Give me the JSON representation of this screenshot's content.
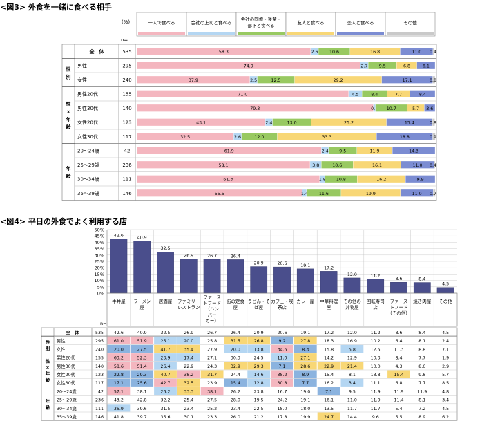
{
  "chart_data": [
    {
      "type": "bar",
      "stacked": "horizontal-100",
      "title": "<図3> 外食を一緒に食べる相手",
      "unit_label": "(%)",
      "n_label": "n=",
      "legend_position": "top",
      "legend": [
        "一人で食べる",
        "会社の上司と食べる",
        "会社の同僚・後輩・部下と食べる",
        "友人と食べる",
        "恋人と食べる",
        "その他"
      ],
      "legend_multiline": {
        "2": [
          "会社の同僚・後輩・",
          "部下と食べる"
        ]
      },
      "colors": [
        "#f4b6bf",
        "#b4d6f2",
        "#98c961",
        "#f8d776",
        "#7b8cd2",
        "#c9c9c9"
      ],
      "groups": [
        {
          "label": "",
          "rows": [
            0
          ]
        },
        {
          "label": "性別",
          "rows": [
            1,
            2
          ]
        },
        {
          "label": "性×年齢",
          "rows": [
            3,
            4,
            5,
            6
          ]
        },
        {
          "label": "年齢",
          "rows": [
            7,
            8,
            9,
            10
          ]
        }
      ],
      "rows": [
        {
          "label": "全　体",
          "n": "535",
          "values": [
            58.3,
            2.6,
            10.6,
            16.8,
            11.0,
            0.4
          ]
        },
        {
          "label": "男性",
          "n": "295",
          "values": [
            74.9,
            2.7,
            9.5,
            6.8,
            6.1,
            null
          ]
        },
        {
          "label": "女性",
          "n": "240",
          "values": [
            37.9,
            2.5,
            12.5,
            29.2,
            17.1,
            0.8
          ]
        },
        {
          "label": "男性20代",
          "n": "155",
          "values": [
            71.0,
            4.5,
            8.4,
            7.7,
            8.4,
            null
          ]
        },
        {
          "label": "男性30代",
          "n": "140",
          "values": [
            79.3,
            0.7,
            10.7,
            5.7,
            3.6,
            null
          ]
        },
        {
          "label": "女性20代",
          "n": "123",
          "values": [
            43.1,
            2.4,
            13.0,
            25.2,
            15.4,
            0.8
          ]
        },
        {
          "label": "女性30代",
          "n": "117",
          "values": [
            32.5,
            2.6,
            12.0,
            33.3,
            18.8,
            0.9
          ]
        },
        {
          "label": "20～24歳",
          "n": "42",
          "values": [
            61.9,
            2.4,
            9.5,
            11.9,
            14.3,
            null
          ]
        },
        {
          "label": "25～29歳",
          "n": "236",
          "values": [
            58.1,
            3.8,
            10.6,
            16.1,
            11.0,
            0.4
          ]
        },
        {
          "label": "30～34歳",
          "n": "111",
          "values": [
            61.3,
            1.8,
            10.8,
            16.2,
            9.9,
            null
          ]
        },
        {
          "label": "35～39歳",
          "n": "146",
          "values": [
            55.5,
            1.4,
            11.6,
            19.9,
            11.0,
            0.7
          ]
        }
      ]
    },
    {
      "type": "bar",
      "title": "<図4> 平日の外食でよく利用する店",
      "ylim": [
        0,
        50
      ],
      "yticks": [
        "0%",
        "5%",
        "10%",
        "15%",
        "20%",
        "25%",
        "30%",
        "35%",
        "40%",
        "45%",
        "50%"
      ],
      "n_label": "n=",
      "color": "#4a4e8c",
      "categories": [
        "牛丼屋",
        "ラーメン屋",
        "居酒屋",
        "ファミリーレストラン",
        "ファーストフード（ハンバーガー）",
        "街の定食屋",
        "うどん・そば屋",
        "カフェ・喫茶店",
        "カレー屋",
        "中華料理屋",
        "その他の丼物屋",
        "回転寿司店",
        "ファーストフード（その他）",
        "焼き肉屋",
        "その他"
      ],
      "category_lines": [
        [
          "牛丼屋"
        ],
        [
          "ラーメン",
          "屋"
        ],
        [
          "居酒屋"
        ],
        [
          "ファミリー",
          "レストラン"
        ],
        [
          "ファース",
          "トフード",
          "（ハン",
          "バー",
          "ガー）"
        ],
        [
          "街の定食",
          "屋"
        ],
        [
          "うどん・そ",
          "ば屋"
        ],
        [
          "カフェ・喫",
          "茶店"
        ],
        [
          "カレー屋"
        ],
        [
          "中華料理",
          "屋"
        ],
        [
          "その他の",
          "丼物屋"
        ],
        [
          "回転寿司",
          "店"
        ],
        [
          "ファース",
          "トフード",
          "（その他）"
        ],
        [
          "焼き肉屋"
        ],
        [
          "その他"
        ]
      ],
      "values": [
        42.6,
        40.9,
        32.5,
        26.9,
        26.7,
        26.4,
        20.9,
        20.6,
        19.1,
        17.2,
        12.0,
        11.2,
        8.6,
        8.4,
        4.5
      ],
      "table_groups": [
        {
          "label": "",
          "rows": [
            0
          ]
        },
        {
          "label": "性別",
          "rows": [
            1,
            2
          ]
        },
        {
          "label": "性×年齢",
          "rows": [
            3,
            4,
            5,
            6
          ]
        },
        {
          "label": "年齢",
          "rows": [
            7,
            8,
            9,
            10
          ]
        }
      ],
      "table_rows": [
        {
          "label": "全　体",
          "n": "535",
          "values": [
            "42.6",
            "40.9",
            "32.5",
            "26.9",
            "26.7",
            "26.4",
            "20.9",
            "20.6",
            "19.1",
            "17.2",
            "12.0",
            "11.2",
            "8.6",
            "8.4",
            "4.5"
          ]
        },
        {
          "label": "男性",
          "n": "295",
          "values": [
            "61.0",
            "51.9",
            "25.1",
            "20.0",
            "25.8",
            "31.5",
            "26.8",
            "9.2",
            "27.8",
            "18.3",
            "16.9",
            "10.2",
            "6.4",
            "8.1",
            "2.4"
          ]
        },
        {
          "label": "女性",
          "n": "240",
          "values": [
            "20.0",
            "27.5",
            "41.7",
            "35.4",
            "27.9",
            "20.0",
            "13.8",
            "34.6",
            "8.3",
            "15.8",
            "5.8",
            "12.5",
            "11.3",
            "8.8",
            "7.1"
          ]
        },
        {
          "label": "男性20代",
          "n": "155",
          "values": [
            "63.2",
            "52.3",
            "23.9",
            "17.4",
            "27.1",
            "30.3",
            "24.5",
            "11.0",
            "27.1",
            "14.2",
            "12.9",
            "10.3",
            "8.4",
            "7.7",
            "1.9"
          ]
        },
        {
          "label": "男性30代",
          "n": "140",
          "values": [
            "58.6",
            "51.4",
            "26.4",
            "22.9",
            "24.3",
            "32.9",
            "29.3",
            "7.1",
            "28.6",
            "22.9",
            "21.4",
            "10.0",
            "4.3",
            "8.6",
            "2.9"
          ]
        },
        {
          "label": "女性20代",
          "n": "123",
          "values": [
            "22.8",
            "29.3",
            "40.7",
            "38.2",
            "31.7",
            "24.4",
            "14.6",
            "38.2",
            "8.9",
            "15.4",
            "8.1",
            "13.8",
            "15.4",
            "9.8",
            "5.7"
          ]
        },
        {
          "label": "女性30代",
          "n": "117",
          "values": [
            "17.1",
            "25.6",
            "42.7",
            "32.5",
            "23.9",
            "15.4",
            "12.8",
            "30.8",
            "7.7",
            "16.2",
            "3.4",
            "11.1",
            "6.8",
            "7.7",
            "8.5"
          ]
        },
        {
          "label": "20～24歳",
          "n": "42",
          "values": [
            "57.1",
            "38.1",
            "26.2",
            "33.3",
            "38.1",
            "26.2",
            "23.8",
            "16.7",
            "19.0",
            "7.1",
            "9.5",
            "11.9",
            "11.9",
            "11.9",
            "4.8"
          ]
        },
        {
          "label": "25～29歳",
          "n": "236",
          "values": [
            "43.2",
            "42.8",
            "32.2",
            "25.4",
            "27.5",
            "28.0",
            "19.5",
            "24.2",
            "19.1",
            "16.1",
            "11.0",
            "11.9",
            "11.4",
            "8.1",
            "3.4"
          ]
        },
        {
          "label": "30～34歳",
          "n": "111",
          "values": [
            "36.9",
            "39.6",
            "31.5",
            "23.4",
            "25.2",
            "23.4",
            "22.5",
            "18.0",
            "18.0",
            "13.5",
            "11.7",
            "11.7",
            "5.4",
            "7.2",
            "4.5"
          ]
        },
        {
          "label": "35～39歳",
          "n": "146",
          "values": [
            "41.8",
            "39.7",
            "35.6",
            "30.1",
            "23.3",
            "26.0",
            "21.2",
            "17.8",
            "19.9",
            "24.7",
            "14.4",
            "9.6",
            "5.5",
            "8.9",
            "6.2"
          ]
        }
      ],
      "highlight_colors": {
        "high": "#f8d776",
        "higher": "#f4b6bf",
        "low": "#b4d6f2",
        "lower": "#8bb3df"
      }
    }
  ]
}
